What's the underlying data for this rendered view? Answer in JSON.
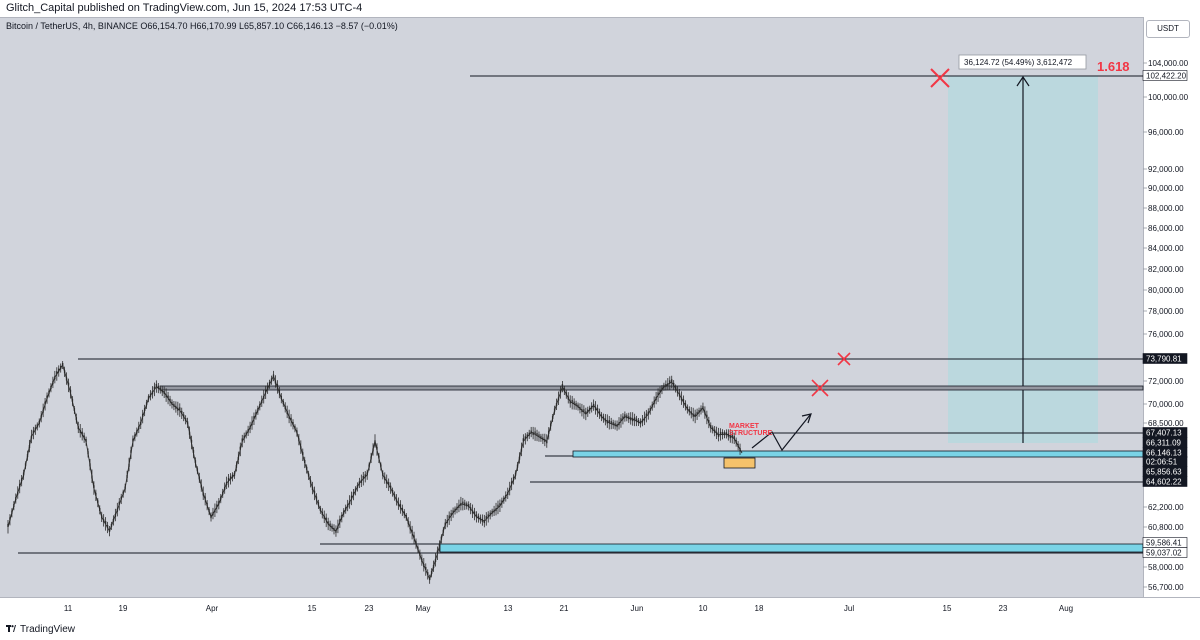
{
  "header": {
    "published": "Glitch_Capital published on TradingView.com, Jun 15, 2024 17:53 UTC-4"
  },
  "legend": {
    "symbol": "Bitcoin / TetherUS, 4h, BINANCE",
    "open": "O66,154.70",
    "high": "H66,170.99",
    "low": "L65,857.10",
    "close": "C66,146.13",
    "change": "−8.57 (−0.01%)"
  },
  "currency_button": "USDT",
  "footer": {
    "brand": "TradingView"
  },
  "colors": {
    "background": "#d1d4dc",
    "candle": "#2b2b2b",
    "zone": "#7ad3e6",
    "target_box": "#b7d8de",
    "red_mark": "#f23645",
    "dark_badge": "#131722",
    "order_block": "#f5c26b"
  },
  "chart_data": {
    "type": "line",
    "title": "Bitcoin / TetherUS, 4h, BINANCE",
    "xlabel": "",
    "ylabel": "",
    "ylim": [
      56000,
      106000
    ],
    "x_tick_labels": [
      "11",
      "19",
      "Apr",
      "15",
      "23",
      "May",
      "13",
      "21",
      "Jun",
      "10",
      "18",
      "Jul",
      "15",
      "23",
      "Aug"
    ],
    "y_tick_labels": [
      "104,000.00",
      "100,000.00",
      "96,000.00",
      "92,000.00",
      "90,000.00",
      "88,000.00",
      "86,000.00",
      "84,000.00",
      "82,000.00",
      "80,000.00",
      "78,000.00",
      "76,000.00",
      "72,000.00",
      "70,000.00",
      "68,500.00",
      "62,200.00",
      "60,800.00",
      "58,000.00",
      "56,700.00"
    ],
    "series": [
      {
        "values": [
          60800,
          63000,
          65500,
          67000,
          68500,
          70500,
          72300,
          73300,
          71000,
          68000,
          66500,
          64000,
          61500,
          60500,
          62000,
          64000,
          66500,
          68500,
          70500,
          71500,
          71000,
          70000,
          69500,
          68500,
          66000,
          63500,
          61500,
          62500,
          64500,
          65500,
          66500,
          68000,
          69500,
          71000,
          72400,
          70500,
          69000,
          67500,
          66000,
          64000,
          62000,
          61000,
          60500,
          61800,
          63000,
          64500,
          65500,
          66500,
          65500,
          64000,
          62500,
          61500,
          60000,
          58500,
          57200,
          59000,
          61000,
          61800,
          62500,
          62300,
          61500,
          61200,
          61800,
          62300,
          63500,
          65500,
          66500,
          67500,
          67000,
          66500,
          69500,
          71500,
          70200,
          69800,
          69200,
          69900,
          69000,
          68500,
          68200,
          69000,
          68800,
          68500,
          69200,
          70500,
          71500,
          71900,
          70800,
          69600,
          69000,
          69700,
          68000,
          67200,
          67300,
          66800,
          66146.13
        ]
      }
    ],
    "price_badges": [
      "102,422.20",
      "73,790.81",
      "67,407.13",
      "66,311.09",
      "66,146.13",
      "02:06:51",
      "65,856.63",
      "64,602.22",
      "59,586.41",
      "59,037.02"
    ],
    "levels": [
      {
        "value": 102422.2,
        "style": "line"
      },
      {
        "value": 73790.81,
        "style": "line"
      },
      {
        "value": 71200,
        "style": "band"
      },
      {
        "value": 67407.13,
        "style": "line"
      },
      {
        "value": 66311.09,
        "style": "zone"
      },
      {
        "value": 64602.22,
        "style": "line"
      },
      {
        "value": 59586.41,
        "style": "zone"
      }
    ],
    "annotations": {
      "measure_label": "36,124.72 (54.49%) 3,612,472",
      "fib_label": "1.618",
      "structure_label_1": "MARKET",
      "structure_label_2": "STRUCTURE"
    }
  }
}
